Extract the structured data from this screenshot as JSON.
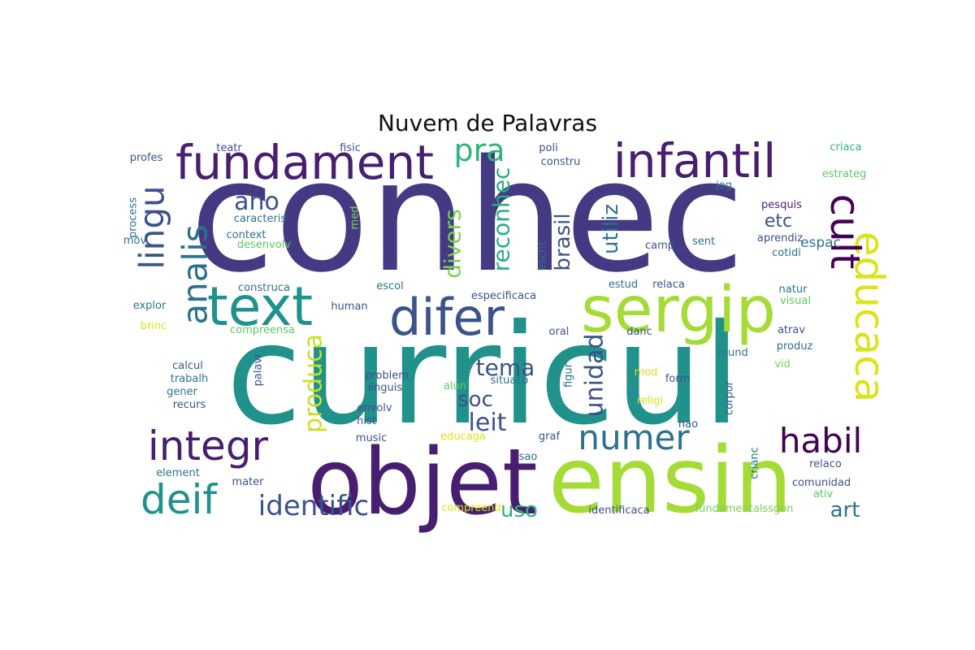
{
  "title": "Nuvem de Palavras",
  "words": [
    {
      "text": "conhec",
      "color": "#443a83"
    },
    {
      "text": "curricul",
      "color": "#21918c"
    },
    {
      "text": "objet",
      "color": "#481f70"
    },
    {
      "text": "ensin",
      "color": "#a5db36"
    },
    {
      "text": "sergip",
      "color": "#a5db36"
    },
    {
      "text": "fundament",
      "color": "#481f70"
    },
    {
      "text": "infantil",
      "color": "#481f70"
    },
    {
      "text": "text",
      "color": "#21918c"
    },
    {
      "text": "difer",
      "color": "#3b528b"
    },
    {
      "text": "integr",
      "color": "#481f70"
    },
    {
      "text": "deif",
      "color": "#21918c"
    },
    {
      "text": "educaca",
      "color": "#dde318"
    },
    {
      "text": "cult",
      "color": "#440154"
    },
    {
      "text": "lingu",
      "color": "#3b528b"
    },
    {
      "text": "analis",
      "color": "#2c728e"
    },
    {
      "text": "habil",
      "color": "#440154"
    },
    {
      "text": "numer",
      "color": "#2c728e"
    },
    {
      "text": "identific",
      "color": "#3b528b"
    },
    {
      "text": "pra",
      "color": "#2fb47c"
    },
    {
      "text": "ano",
      "color": "#3b528b"
    },
    {
      "text": "produca",
      "color": "#c8e020"
    },
    {
      "text": "divers",
      "color": "#7ad151"
    },
    {
      "text": "reconhec",
      "color": "#27ad81"
    },
    {
      "text": "brasil",
      "color": "#3b528b"
    },
    {
      "text": "utiliz",
      "color": "#2c728e"
    },
    {
      "text": "unidad",
      "color": "#3b528b"
    },
    {
      "text": "tema",
      "color": "#3b528b"
    },
    {
      "text": "soc",
      "color": "#3b528b"
    },
    {
      "text": "leit",
      "color": "#3b528b"
    },
    {
      "text": "uso",
      "color": "#2fb47c"
    },
    {
      "text": "art",
      "color": "#2c728e"
    },
    {
      "text": "etc",
      "color": "#3b528b"
    },
    {
      "text": "espac",
      "color": "#2c728e"
    },
    {
      "text": "teatr",
      "color": "#3b528b"
    },
    {
      "text": "fisic",
      "color": "#3b528b"
    },
    {
      "text": "poli",
      "color": "#3b528b"
    },
    {
      "text": "constru",
      "color": "#3b528b"
    },
    {
      "text": "criaca",
      "color": "#2fb47c"
    },
    {
      "text": "estrateg",
      "color": "#5ec962"
    },
    {
      "text": "profes",
      "color": "#3b528b"
    },
    {
      "text": "jog",
      "color": "#2c728e"
    },
    {
      "text": "pesquis",
      "color": "#481f70"
    },
    {
      "text": "process",
      "color": "#2c728e"
    },
    {
      "text": "caracteris",
      "color": "#2c728e"
    },
    {
      "text": "med",
      "color": "#7ad151"
    },
    {
      "text": "mov",
      "color": "#2c728e"
    },
    {
      "text": "context",
      "color": "#2c728e"
    },
    {
      "text": "desenvolv",
      "color": "#5ec962"
    },
    {
      "text": "escrit",
      "color": "#2c728e"
    },
    {
      "text": "camp",
      "color": "#3b528b"
    },
    {
      "text": "sent",
      "color": "#2c728e"
    },
    {
      "text": "aprendiz",
      "color": "#3b528b"
    },
    {
      "text": "cotidi",
      "color": "#2c728e"
    },
    {
      "text": "construca",
      "color": "#2c728e"
    },
    {
      "text": "escol",
      "color": "#2c728e"
    },
    {
      "text": "especificaca",
      "color": "#3b528b"
    },
    {
      "text": "estud",
      "color": "#2c728e"
    },
    {
      "text": "relaca",
      "color": "#3b528b"
    },
    {
      "text": "natur",
      "color": "#2c728e"
    },
    {
      "text": "visual",
      "color": "#5ec962"
    },
    {
      "text": "explor",
      "color": "#2c728e"
    },
    {
      "text": "human",
      "color": "#3b528b"
    },
    {
      "text": "brinc",
      "color": "#dde318"
    },
    {
      "text": "compreensa",
      "color": "#5ec962"
    },
    {
      "text": "oral",
      "color": "#3b528b"
    },
    {
      "text": "danc",
      "color": "#3b528b"
    },
    {
      "text": "atrav",
      "color": "#3b528b"
    },
    {
      "text": "produz",
      "color": "#2c728e"
    },
    {
      "text": "calcul",
      "color": "#3b528b"
    },
    {
      "text": "palavr",
      "color": "#3b528b"
    },
    {
      "text": "figur",
      "color": "#2c728e"
    },
    {
      "text": "mund",
      "color": "#2c728e"
    },
    {
      "text": "vid",
      "color": "#7ad151"
    },
    {
      "text": "trabalh",
      "color": "#2c728e"
    },
    {
      "text": "problem",
      "color": "#3b528b"
    },
    {
      "text": "situaco",
      "color": "#2c728e"
    },
    {
      "text": "mod",
      "color": "#dde318"
    },
    {
      "text": "form",
      "color": "#3b528b"
    },
    {
      "text": "corpor",
      "color": "#3b528b"
    },
    {
      "text": "gener",
      "color": "#2c728e"
    },
    {
      "text": "linguis",
      "color": "#3b528b"
    },
    {
      "text": "alun",
      "color": "#5ec962"
    },
    {
      "text": "religi",
      "color": "#dde318"
    },
    {
      "text": "recurs",
      "color": "#3b528b"
    },
    {
      "text": "envolv",
      "color": "#3b528b"
    },
    {
      "text": "nao",
      "color": "#3b528b"
    },
    {
      "text": "hist",
      "color": "#3b528b"
    },
    {
      "text": "music",
      "color": "#3b528b"
    },
    {
      "text": "educaga",
      "color": "#dde318"
    },
    {
      "text": "graf",
      "color": "#3b528b"
    },
    {
      "text": "crianc",
      "color": "#2c728e"
    },
    {
      "text": "sao",
      "color": "#2c728e"
    },
    {
      "text": "element",
      "color": "#2c728e"
    },
    {
      "text": "relaco",
      "color": "#3b528b"
    },
    {
      "text": "mater",
      "color": "#3b528b"
    },
    {
      "text": "comunidad",
      "color": "#3b528b"
    },
    {
      "text": "ativ",
      "color": "#5ec962"
    },
    {
      "text": "compreend",
      "color": "#dde318"
    },
    {
      "text": "identificaca",
      "color": "#3b528b"
    },
    {
      "text": "fundamentalssgon",
      "color": "#7ad151"
    }
  ]
}
